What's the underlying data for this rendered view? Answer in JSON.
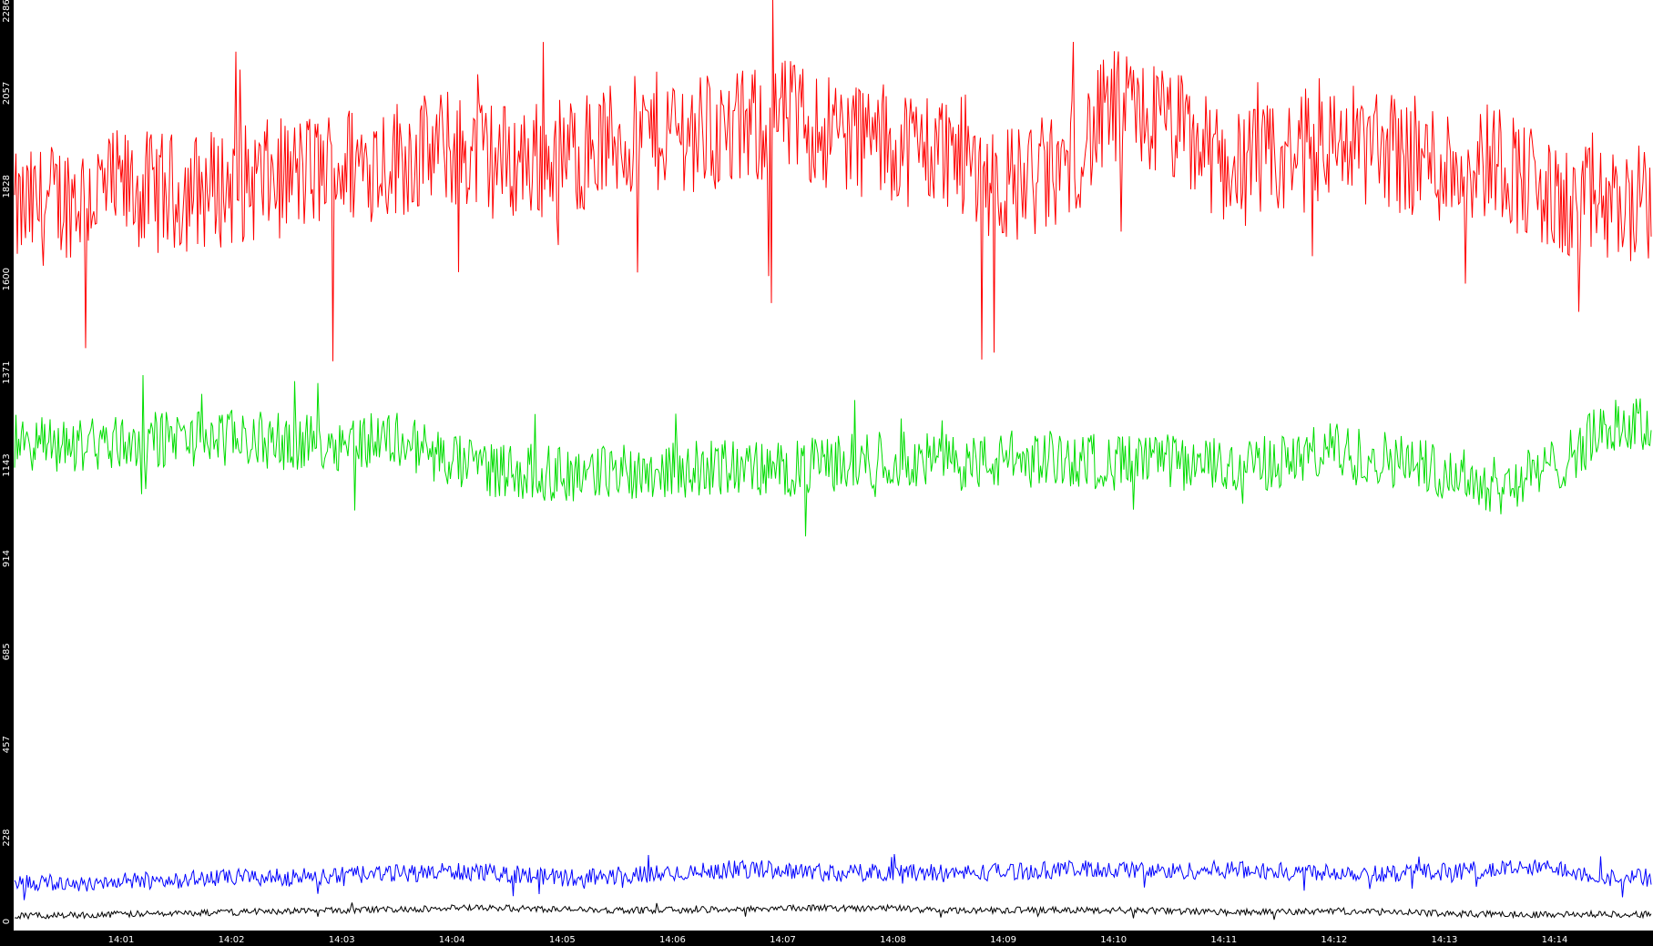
{
  "colors": {
    "background": "#000000",
    "plot_area": "#ffffff",
    "axis_text": "#ffffff",
    "series_red": "#ff0000",
    "series_green": "#00dd00",
    "series_blue": "#0000ff",
    "series_black": "#000000"
  },
  "chart_data": {
    "type": "line",
    "title": "",
    "xlabel": "",
    "ylabel": "",
    "ylim": [
      0,
      2286
    ],
    "y_ticks": [
      "0",
      "228",
      "457",
      "685",
      "914",
      "1143",
      "1371",
      "1600",
      "1828",
      "2057",
      "2286"
    ],
    "x_ticks": [
      "14:01",
      "14:02",
      "14:03",
      "14:04",
      "14:05",
      "14:06",
      "14:07",
      "14:08",
      "14:09",
      "14:10",
      "14:11",
      "14:12",
      "14:13",
      "14:14"
    ],
    "x_range_minutes": [
      14.03,
      14.25
    ],
    "grid": false,
    "legend": "none",
    "series": [
      {
        "color": "#ff0000",
        "x": [
          "14:00:03",
          "14:00:30",
          "14:01:00",
          "14:01:30",
          "14:02:00",
          "14:02:30",
          "14:03:00",
          "14:03:30",
          "14:04:00",
          "14:04:30",
          "14:05:00",
          "14:05:30",
          "14:06:00",
          "14:06:30",
          "14:07:00",
          "14:07:30",
          "14:08:00",
          "14:08:30",
          "14:09:00",
          "14:09:30",
          "14:10:00",
          "14:10:30",
          "14:11:00",
          "14:11:30",
          "14:12:00",
          "14:12:30",
          "14:13:00",
          "14:13:30",
          "14:14:00",
          "14:14:30"
        ],
        "values": [
          1760,
          1800,
          1820,
          1810,
          1830,
          1850,
          1880,
          1900,
          1920,
          1890,
          1900,
          1940,
          1970,
          1950,
          2000,
          1960,
          1930,
          1920,
          1830,
          1860,
          2020,
          1980,
          1880,
          1880,
          1940,
          1920,
          1880,
          1900,
          1780,
          1780
        ]
      },
      {
        "color": "#00dd00",
        "x": [
          "14:00:03",
          "14:00:30",
          "14:01:00",
          "14:01:30",
          "14:02:00",
          "14:02:30",
          "14:03:00",
          "14:03:30",
          "14:04:00",
          "14:04:30",
          "14:05:00",
          "14:05:30",
          "14:06:00",
          "14:06:30",
          "14:07:00",
          "14:07:30",
          "14:08:00",
          "14:08:30",
          "14:09:00",
          "14:09:30",
          "14:10:00",
          "14:10:30",
          "14:11:00",
          "14:11:30",
          "14:12:00",
          "14:12:30",
          "14:13:00",
          "14:13:30",
          "14:14:00",
          "14:14:30"
        ],
        "values": [
          1200,
          1190,
          1200,
          1210,
          1210,
          1200,
          1200,
          1210,
          1150,
          1130,
          1120,
          1130,
          1130,
          1140,
          1130,
          1150,
          1160,
          1150,
          1150,
          1160,
          1150,
          1150,
          1140,
          1150,
          1180,
          1160,
          1130,
          1090,
          1140,
          1240
        ]
      },
      {
        "color": "#0000ff",
        "x": [
          "14:00:03",
          "14:00:30",
          "14:01:00",
          "14:01:30",
          "14:02:00",
          "14:02:30",
          "14:03:00",
          "14:03:30",
          "14:04:00",
          "14:04:30",
          "14:05:00",
          "14:05:30",
          "14:06:00",
          "14:06:30",
          "14:07:00",
          "14:07:30",
          "14:08:00",
          "14:08:30",
          "14:09:00",
          "14:09:30",
          "14:10:00",
          "14:10:30",
          "14:11:00",
          "14:11:30",
          "14:12:00",
          "14:12:30",
          "14:13:00",
          "14:13:30",
          "14:14:00",
          "14:14:30"
        ],
        "values": [
          120,
          115,
          120,
          125,
          130,
          130,
          135,
          140,
          145,
          140,
          130,
          135,
          140,
          150,
          150,
          140,
          145,
          140,
          145,
          150,
          150,
          145,
          150,
          145,
          145,
          140,
          145,
          150,
          155,
          130
        ]
      },
      {
        "color": "#000000",
        "x": [
          "14:00:03",
          "14:00:30",
          "14:01:00",
          "14:01:30",
          "14:02:00",
          "14:02:30",
          "14:03:00",
          "14:03:30",
          "14:04:00",
          "14:04:30",
          "14:05:00",
          "14:05:30",
          "14:06:00",
          "14:06:30",
          "14:07:00",
          "14:07:30",
          "14:08:00",
          "14:08:30",
          "14:09:00",
          "14:09:30",
          "14:10:00",
          "14:10:30",
          "14:11:00",
          "14:11:30",
          "14:12:00",
          "14:12:30",
          "14:13:00",
          "14:13:30",
          "14:14:00",
          "14:14:30"
        ],
        "values": [
          35,
          38,
          40,
          42,
          45,
          48,
          50,
          52,
          55,
          55,
          52,
          50,
          50,
          52,
          55,
          55,
          55,
          50,
          50,
          50,
          50,
          48,
          45,
          45,
          48,
          45,
          42,
          40,
          40,
          40
        ]
      }
    ]
  }
}
